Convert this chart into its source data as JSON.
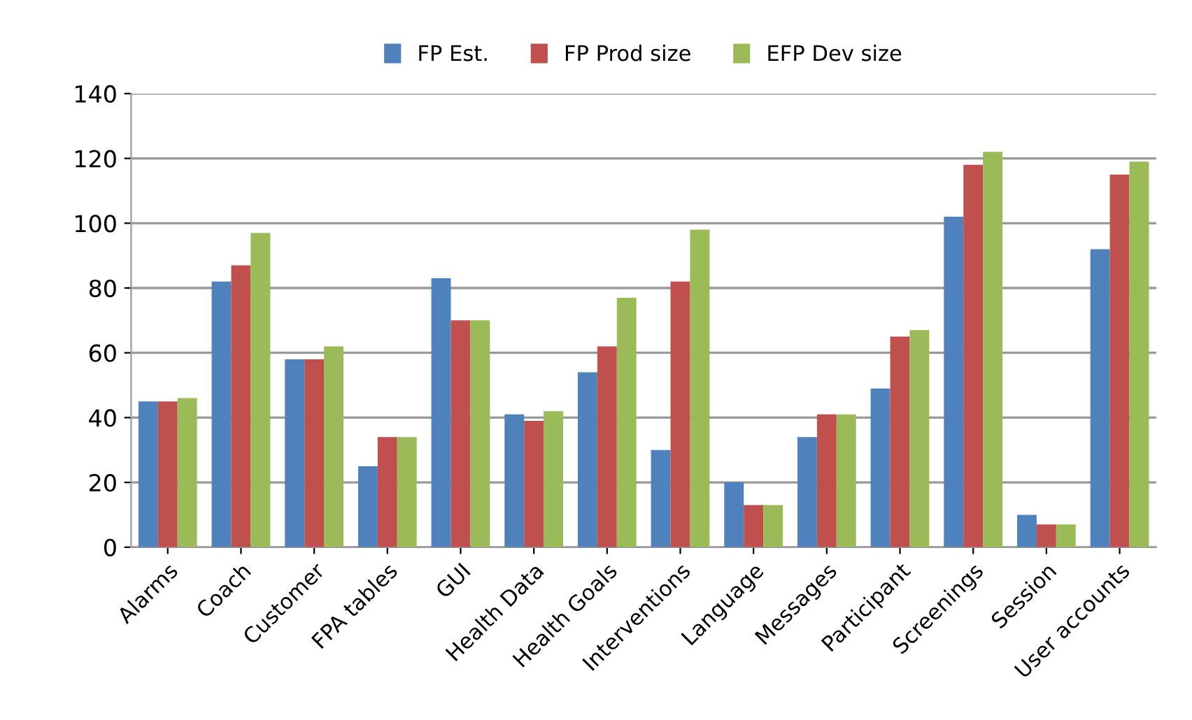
{
  "chart_data": {
    "type": "bar",
    "categories": [
      "Alarms",
      "Coach",
      "Customer",
      "FPA tables",
      "GUI",
      "Health Data",
      "Health Goals",
      "Interventions",
      "Language",
      "Messages",
      "Participant",
      "Screenings",
      "Session",
      "User accounts"
    ],
    "series": [
      {
        "name": "FP Est.",
        "color": "#4f81bd",
        "values": [
          45,
          82,
          58,
          25,
          83,
          41,
          54,
          30,
          20,
          34,
          49,
          102,
          10,
          92
        ]
      },
      {
        "name": "FP Prod size",
        "color": "#c0504d",
        "values": [
          45,
          87,
          58,
          34,
          70,
          39,
          62,
          82,
          13,
          41,
          65,
          118,
          7,
          115
        ]
      },
      {
        "name": "EFP Dev size",
        "color": "#9bbb59",
        "values": [
          46,
          97,
          62,
          34,
          70,
          42,
          77,
          98,
          13,
          41,
          67,
          122,
          7,
          119
        ]
      }
    ],
    "ylim": [
      0,
      140
    ],
    "yticks": [
      0,
      20,
      40,
      60,
      80,
      100,
      120,
      140
    ],
    "grid": "y",
    "legend": "top"
  }
}
